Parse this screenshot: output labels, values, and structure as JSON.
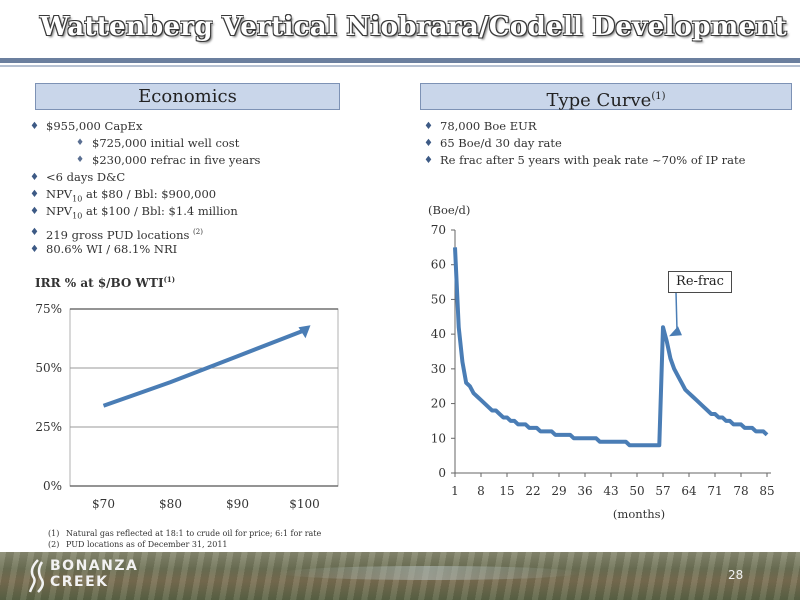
{
  "title": "Wattenberg Vertical Niobrara/Codell Development",
  "left_section": {
    "heading": "Economics",
    "bullets": [
      {
        "level": 1,
        "parts": [
          {
            "t": "$955,000 CapEx"
          }
        ]
      },
      {
        "level": 2,
        "parts": [
          {
            "t": "$725,000 initial well cost"
          }
        ]
      },
      {
        "level": 2,
        "parts": [
          {
            "t": "$230,000 refrac in five years"
          }
        ]
      },
      {
        "level": 1,
        "parts": [
          {
            "t": "<6 days D&C"
          }
        ]
      },
      {
        "level": 1,
        "parts": [
          {
            "t": "NPV"
          },
          {
            "t": "10",
            "sub": true
          },
          {
            "t": " at $80 / Bbl:  $900,000"
          }
        ]
      },
      {
        "level": 1,
        "parts": [
          {
            "t": "NPV"
          },
          {
            "t": "10",
            "sub": true
          },
          {
            "t": " at $100 / Bbl:  $1.4 million"
          }
        ]
      },
      {
        "level": 1,
        "parts": [
          {
            "t": "219 gross PUD locations "
          },
          {
            "t": "(2)",
            "sup": true
          }
        ],
        "gap": true
      },
      {
        "level": 1,
        "parts": [
          {
            "t": "80.6% WI / 68.1% NRI"
          }
        ]
      }
    ],
    "irr_title": "IRR % at $/BO WTI",
    "irr_title_note": "(1)"
  },
  "right_section": {
    "heading": "Type Curve",
    "heading_note": "(1)",
    "bullets": [
      {
        "level": 1,
        "parts": [
          {
            "t": "78,000 Boe EUR"
          }
        ]
      },
      {
        "level": 1,
        "parts": [
          {
            "t": "65 Boe/d 30 day rate"
          }
        ]
      },
      {
        "level": 1,
        "parts": [
          {
            "t": "Re frac after 5 years with peak rate ~70% of IP rate"
          }
        ]
      }
    ],
    "refrac_label": "Re-frac"
  },
  "footnotes": [
    {
      "num": "(1)",
      "text": "Natural gas reflected at 18:1 to crude oil for price; 6:1 for rate"
    },
    {
      "num": "(2)",
      "text": "PUD locations as of December 31, 2011"
    }
  ],
  "footer": {
    "logo_line1": "BONANZA",
    "logo_line2": "CREEK",
    "page_number": "28"
  },
  "colors": {
    "line": "#4a7db5",
    "section_box": "#c9d6ea",
    "title_rule": "#6b7f9e"
  },
  "icons": {
    "bullet": "drop-icon",
    "logo": "bonanza-creek-logo"
  },
  "chart_data": [
    {
      "type": "line",
      "categories": [
        "$70",
        "$80",
        "$90",
        "$100"
      ],
      "series": [
        {
          "values": [
            34,
            44,
            55,
            66
          ]
        }
      ],
      "ylim": [
        0,
        75
      ],
      "yticks": [
        0,
        25,
        50,
        75
      ],
      "ytick_labels": [
        "0%",
        "25%",
        "50%",
        "75%"
      ],
      "grid": true,
      "legend": "none"
    },
    {
      "type": "line",
      "ylabel": "(Boe/d)",
      "xlabel": "(months)",
      "xlim": [
        1,
        85
      ],
      "ylim": [
        0,
        70
      ],
      "xticks": [
        1,
        8,
        15,
        22,
        29,
        36,
        43,
        50,
        57,
        64,
        71,
        78,
        85
      ],
      "yticks": [
        0,
        10,
        20,
        30,
        40,
        50,
        60,
        70
      ],
      "grid": false,
      "legend": "none",
      "annotations": [
        "Re-frac"
      ],
      "series": [
        {
          "x": [
            1,
            2,
            3,
            4,
            5,
            6,
            7,
            8,
            9,
            10,
            11,
            12,
            13,
            14,
            15,
            16,
            17,
            18,
            19,
            20,
            21,
            22,
            23,
            24,
            25,
            26,
            27,
            28,
            29,
            30,
            31,
            32,
            33,
            34,
            35,
            36,
            37,
            38,
            39,
            40,
            41,
            42,
            43,
            44,
            45,
            46,
            47,
            48,
            49,
            50,
            51,
            52,
            53,
            54,
            55,
            56,
            57,
            58,
            59,
            60,
            61,
            62,
            63,
            64,
            65,
            66,
            67,
            68,
            69,
            70,
            71,
            72,
            73,
            74,
            75,
            76,
            77,
            78,
            79,
            80,
            81,
            82,
            83,
            84,
            85
          ],
          "values": [
            65,
            42,
            32,
            26,
            25,
            23,
            22,
            21,
            20,
            19,
            18,
            18,
            17,
            16,
            16,
            15,
            15,
            14,
            14,
            14,
            13,
            13,
            13,
            12,
            12,
            12,
            12,
            11,
            11,
            11,
            11,
            11,
            10,
            10,
            10,
            10,
            10,
            10,
            10,
            9,
            9,
            9,
            9,
            9,
            9,
            9,
            9,
            8,
            8,
            8,
            8,
            8,
            8,
            8,
            8,
            8,
            42,
            38,
            33,
            30,
            28,
            26,
            24,
            23,
            22,
            21,
            20,
            19,
            18,
            17,
            17,
            16,
            16,
            15,
            15,
            14,
            14,
            14,
            13,
            13,
            13,
            12,
            12,
            12,
            11
          ]
        }
      ]
    }
  ]
}
